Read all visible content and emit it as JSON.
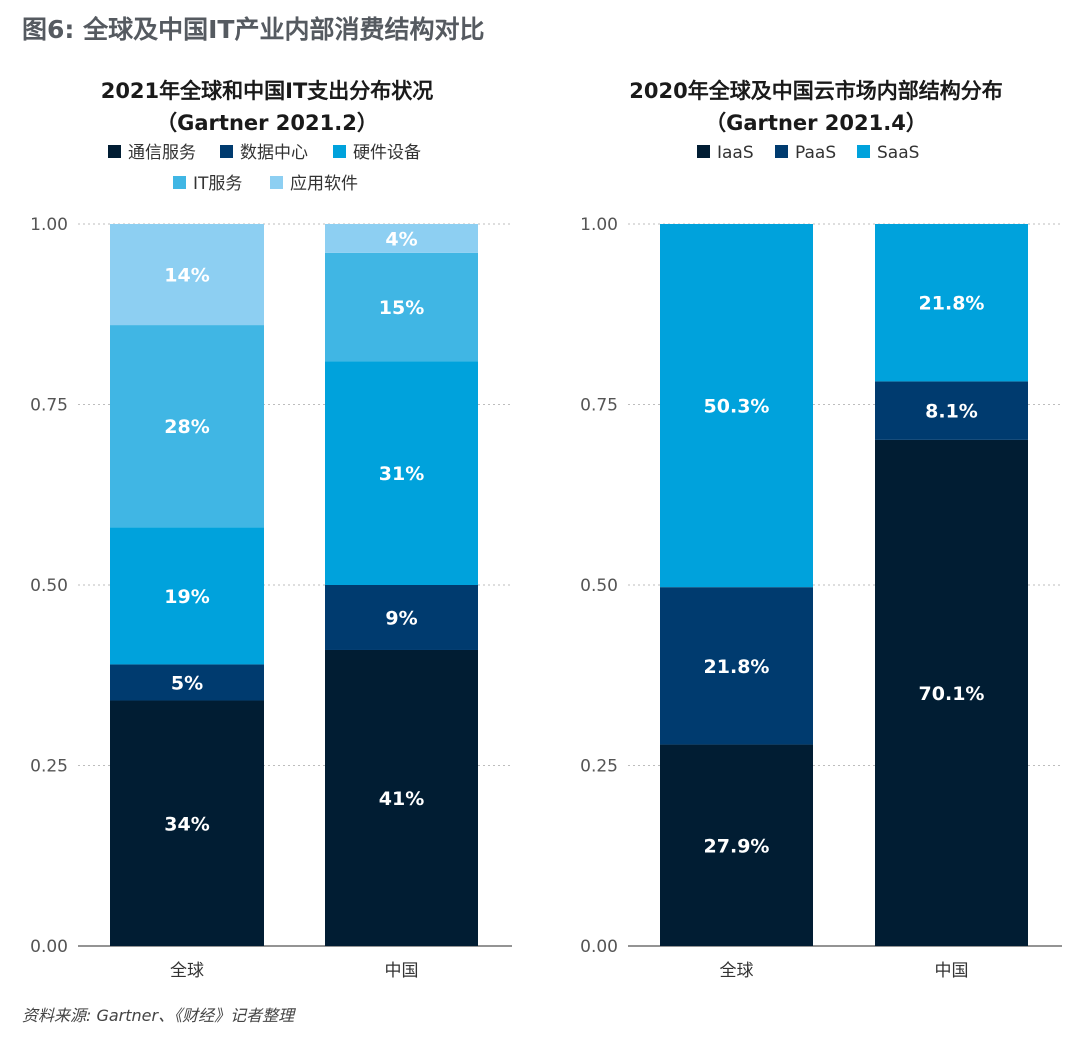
{
  "figure": {
    "title": "图6: 全球及中国IT产业内部消费结构对比",
    "source": "资料来源: Gartner、《财经》记者整理"
  },
  "chart_data": [
    {
      "type": "bar",
      "stacked": true,
      "title": "2021年全球和中国IT支出分布状况",
      "subtitle": "（Gartner 2021.2）",
      "categories": [
        "全球",
        "中国"
      ],
      "yticks": [
        "0.00",
        "0.25",
        "0.50",
        "0.75",
        "1.00"
      ],
      "ylim": [
        0,
        1
      ],
      "grid": true,
      "legend_position": "top",
      "series": [
        {
          "name": "通信服务",
          "color": "#011d33",
          "values": [
            0.34,
            0.41
          ],
          "labels": [
            "34%",
            "41%"
          ]
        },
        {
          "name": "数据中心",
          "color": "#003b6f",
          "values": [
            0.05,
            0.09
          ],
          "labels": [
            "5%",
            "9%"
          ]
        },
        {
          "name": "硬件设备",
          "color": "#00a2dc",
          "values": [
            0.19,
            0.31
          ],
          "labels": [
            "19%",
            "31%"
          ]
        },
        {
          "name": "IT服务",
          "color": "#40b6e4",
          "values": [
            0.28,
            0.15
          ],
          "labels": [
            "28%",
            "15%"
          ]
        },
        {
          "name": "应用软件",
          "color": "#8dcff2",
          "values": [
            0.14,
            0.04
          ],
          "labels": [
            "14%",
            "4%"
          ]
        }
      ]
    },
    {
      "type": "bar",
      "stacked": true,
      "title": "2020年全球及中国云市场内部结构分布",
      "subtitle": "（Gartner 2021.4）",
      "categories": [
        "全球",
        "中国"
      ],
      "yticks": [
        "0.00",
        "0.25",
        "0.50",
        "0.75",
        "1.00"
      ],
      "ylim": [
        0,
        1
      ],
      "grid": true,
      "legend_position": "top",
      "series": [
        {
          "name": "IaaS",
          "color": "#011d33",
          "values": [
            0.279,
            0.701
          ],
          "labels": [
            "27.9%",
            "70.1%"
          ]
        },
        {
          "name": "PaaS",
          "color": "#003b6f",
          "values": [
            0.218,
            0.081
          ],
          "labels": [
            "21.8%",
            "8.1%"
          ]
        },
        {
          "name": "SaaS",
          "color": "#00a2dc",
          "values": [
            0.503,
            0.218
          ],
          "labels": [
            "50.3%",
            "21.8%"
          ]
        }
      ]
    }
  ]
}
